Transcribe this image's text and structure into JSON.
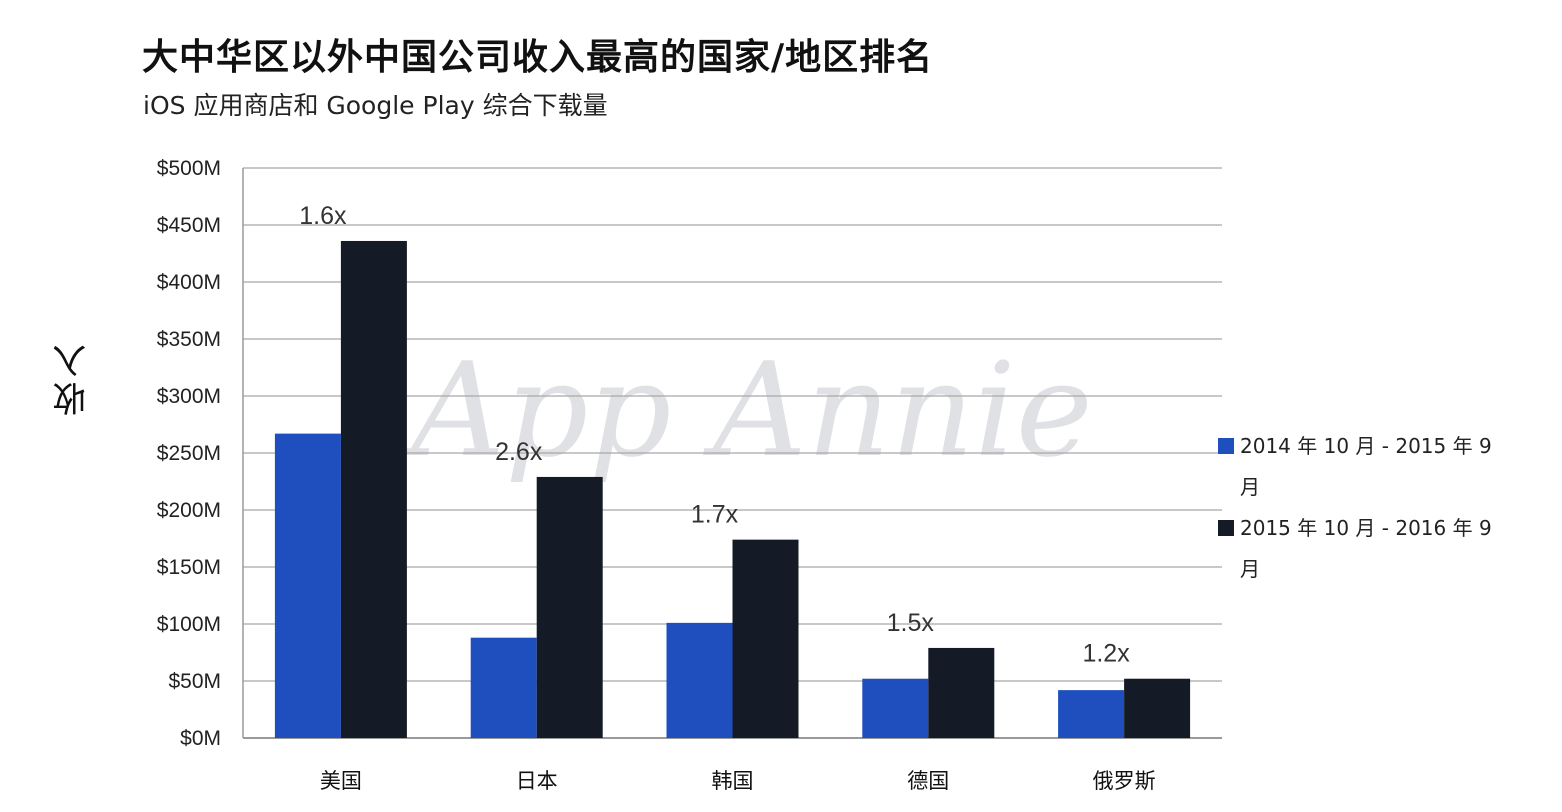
{
  "title": "大中华区以外中国公司收入最高的国家/地区排名",
  "subtitle": "iOS 应用商店和 Google Play 综合下载量",
  "watermark": "App Annie",
  "chart_data": {
    "type": "bar",
    "categories": [
      "美国",
      "日本",
      "韩国",
      "德国",
      "俄罗斯"
    ],
    "series": [
      {
        "name": "2014 年 10 月 - 2015 年 9 月",
        "color": "#1f4fbf",
        "values": [
          267,
          88,
          101,
          52,
          42
        ]
      },
      {
        "name": "2015 年 10 月 - 2016 年 9 月",
        "color": "#151b26",
        "values": [
          436,
          229,
          174,
          79,
          52
        ]
      }
    ],
    "annotations": [
      "1.6x",
      "2.6x",
      "1.7x",
      "1.5x",
      "1.2x"
    ],
    "ylabel": "收入",
    "xlabel": "",
    "ylim": [
      0,
      500
    ],
    "yticks": [
      0,
      50,
      100,
      150,
      200,
      250,
      300,
      350,
      400,
      450,
      500
    ],
    "ytick_labels": [
      "$0M",
      "$50M",
      "$100M",
      "$150M",
      "$200M",
      "$250M",
      "$300M",
      "$350M",
      "$400M",
      "$450M",
      "$500M"
    ],
    "grid": true,
    "legend_position": "right"
  }
}
